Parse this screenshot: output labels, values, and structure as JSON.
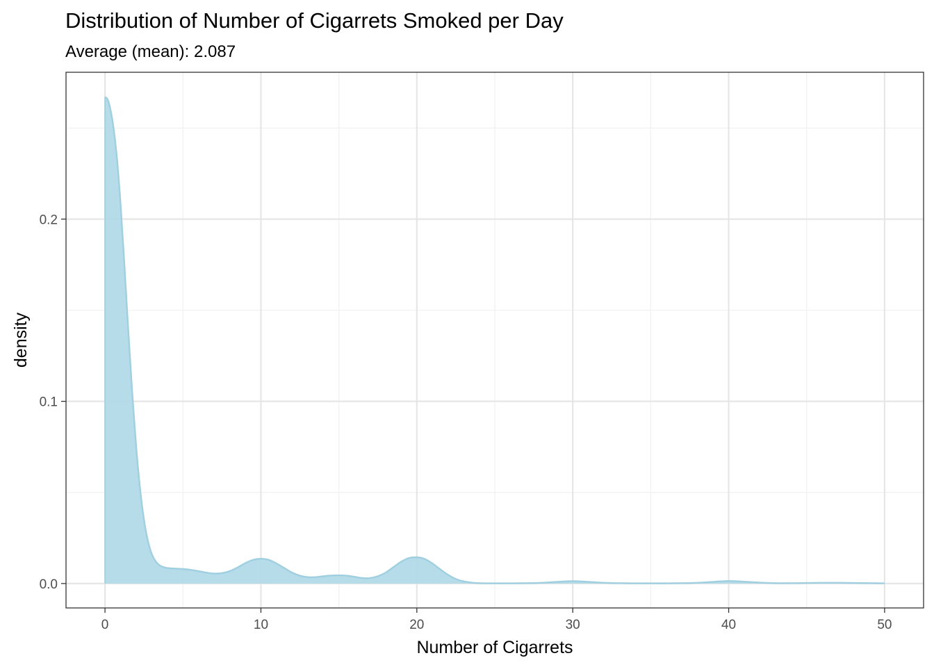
{
  "chart_data": {
    "type": "area",
    "title": "Distribution of Number of Cigarrets Smoked per Day",
    "subtitle": "Average (mean): 2.087",
    "xlabel": "Number of Cigarrets",
    "ylabel": "density",
    "xlim": [
      -2.5,
      52.5
    ],
    "ylim": [
      -0.0134,
      0.2806
    ],
    "x_ticks": [
      0,
      10,
      20,
      30,
      40,
      50
    ],
    "x_tick_labels": [
      "0",
      "10",
      "20",
      "30",
      "40",
      "50"
    ],
    "x_minor_ticks": [
      5,
      15,
      25,
      35,
      45
    ],
    "y_ticks": [
      0.0,
      0.1,
      0.2
    ],
    "y_tick_labels": [
      "0.0",
      "0.1",
      "0.2"
    ],
    "y_minor_ticks": [
      0.05,
      0.15,
      0.25
    ],
    "grid": true,
    "fill_color": "#add8e6",
    "fill_opacity": 0.9,
    "line_color": "#9fcfe0",
    "series": [
      {
        "x": [
          0,
          0.15,
          0.3,
          0.5,
          0.75,
          1.0,
          1.25,
          1.5,
          1.75,
          2.0,
          2.25,
          2.5,
          2.75,
          3.0,
          3.25,
          3.5,
          3.75,
          4.0,
          4.5,
          5.0,
          5.5,
          6.0,
          6.5,
          7.0,
          7.5,
          8.0,
          8.5,
          9.0,
          9.5,
          10.0,
          10.5,
          11.0,
          11.5,
          12.0,
          12.5,
          13.0,
          13.5,
          14.0,
          14.5,
          15.0,
          15.5,
          16.0,
          16.5,
          17.0,
          17.5,
          18.0,
          18.5,
          19.0,
          19.5,
          20.0,
          20.5,
          21.0,
          21.5,
          22.0,
          22.5,
          23.0,
          23.5,
          24.0,
          25.0,
          26.0,
          27.0,
          28.0,
          29.0,
          30.0,
          31.0,
          32.0,
          33.0,
          34.0,
          35.0,
          36.0,
          37.0,
          38.0,
          39.0,
          40.0,
          41.0,
          42.0,
          43.0,
          44.0,
          45.0,
          46.0,
          47.0,
          48.0,
          49.0,
          50.0
        ],
        "y": [
          0.267,
          0.266,
          0.262,
          0.253,
          0.235,
          0.208,
          0.174,
          0.138,
          0.104,
          0.075,
          0.052,
          0.035,
          0.0235,
          0.0162,
          0.0122,
          0.01,
          0.009,
          0.0085,
          0.0082,
          0.008,
          0.0075,
          0.0068,
          0.006,
          0.0055,
          0.0057,
          0.0068,
          0.0088,
          0.0112,
          0.013,
          0.0136,
          0.013,
          0.011,
          0.0085,
          0.006,
          0.0043,
          0.0035,
          0.0035,
          0.004,
          0.0044,
          0.0045,
          0.0043,
          0.0037,
          0.003,
          0.003,
          0.004,
          0.006,
          0.009,
          0.012,
          0.014,
          0.0144,
          0.0135,
          0.011,
          0.0078,
          0.0048,
          0.0025,
          0.0012,
          0.0005,
          0.0002,
          0.0001,
          0.0001,
          0.0002,
          0.0004,
          0.0009,
          0.0013,
          0.0009,
          0.0004,
          0.0002,
          0.0001,
          0.0001,
          0.0001,
          0.0002,
          0.0004,
          0.0009,
          0.0014,
          0.001,
          0.0005,
          0.0002,
          0.0002,
          0.0003,
          0.0004,
          0.0004,
          0.0003,
          0.0002,
          0.0001
        ]
      }
    ]
  }
}
